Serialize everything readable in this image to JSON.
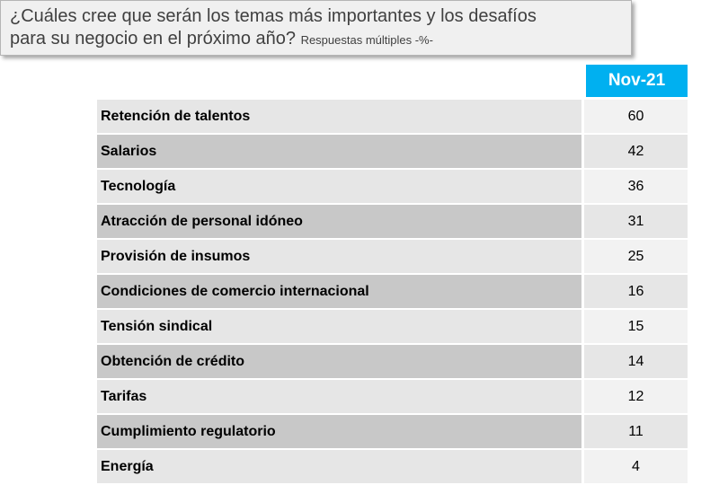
{
  "title": {
    "line1": "¿Cuáles cree que serán los temas más importantes y los desafíos",
    "line2": "para su negocio en el próximo año?",
    "subtitle": "Respuestas múltiples -%-"
  },
  "chart_data": {
    "type": "table",
    "title": "¿Cuáles cree que serán los temas más importantes y los desafíos para su negocio en el próximo año? Respuestas múltiples -%-",
    "column_header": "Nov-21",
    "categories": [
      "Retención de talentos",
      "Salarios",
      "Tecnología",
      "Atracción de personal idóneo",
      "Provisión de insumos",
      "Condiciones de comercio internacional",
      "Tensión sindical",
      "Obtención de crédito",
      "Tarifas",
      "Cumplimiento regulatorio",
      "Energía"
    ],
    "values": [
      60,
      42,
      36,
      31,
      25,
      16,
      15,
      14,
      12,
      11,
      4
    ]
  },
  "colors": {
    "header_bg": "#00b0f0",
    "row_light": "#e6e6e6",
    "row_dark": "#c8c8c8"
  }
}
